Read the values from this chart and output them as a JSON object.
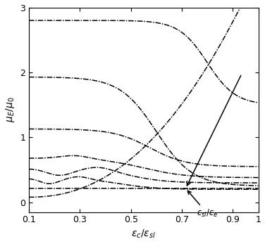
{
  "xlabel": "$\\varepsilon_c/\\varepsilon_{sl}$",
  "ylabel": "$\\mu_E/\\mu_0$",
  "annotation_label": "$\\varepsilon_{sl}/\\varepsilon_e$",
  "xlim": [
    0.1,
    1.0
  ],
  "ylim": [
    -0.15,
    3.0
  ],
  "yticks": [
    0,
    1,
    2,
    3
  ],
  "xticks": [
    0.1,
    0.3,
    0.5,
    0.7,
    0.9,
    1.0
  ],
  "xtick_labels": [
    "0.1",
    "0.3",
    "0.5",
    "0.7",
    "0.9",
    "1"
  ],
  "background_color": "#ffffff",
  "line_color": "#000000"
}
